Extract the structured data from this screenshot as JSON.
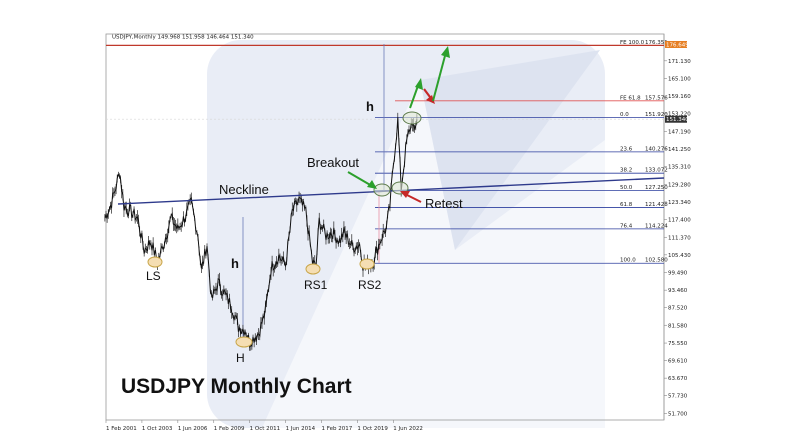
{
  "window": {
    "header_text": "USDJPY,Monthly  149.968 151.958 146.464 151.340"
  },
  "chart_data": {
    "type": "line",
    "title": "USDJPY Monthly Chart",
    "symbol": "USDJPY",
    "timeframe": "Monthly",
    "ohlc_header": {
      "open": 149.968,
      "high": 151.958,
      "low": 146.464,
      "close": 151.34
    },
    "last_price": 151.34,
    "target_price": 176.649,
    "x_tick_labels": [
      "1 Feb 2001",
      "1 Oct 2003",
      "1 Jun 2006",
      "1 Feb 2009",
      "1 Oct 2011",
      "1 Jun 2014",
      "1 Feb 2017",
      "1 Oct 2019",
      "1 Jun 2022"
    ],
    "y_tick_labels": [
      "171.130",
      "165.100",
      "159.160",
      "153.220",
      "147.190",
      "141.250",
      "135.310",
      "129.280",
      "123.340",
      "117.400",
      "111.370",
      "105.430",
      "99.490",
      "93.460",
      "87.520",
      "81.580",
      "75.550",
      "69.610",
      "63.670",
      "57.730",
      "51.700"
    ],
    "ylim": [
      49.5,
      180.2
    ],
    "grid": false,
    "series": [
      {
        "values": [
          [
            "2001-01",
            118
          ],
          [
            "2001-06",
            122
          ],
          [
            "2001-12",
            130
          ],
          [
            "2002-02",
            134
          ],
          [
            "2002-06",
            122
          ],
          [
            "2002-12",
            120
          ],
          [
            "2003-06",
            118
          ],
          [
            "2003-12",
            107
          ],
          [
            "2004-06",
            110
          ],
          [
            "2004-12",
            103
          ],
          [
            "2005-06",
            110
          ],
          [
            "2005-12",
            118
          ],
          [
            "2006-06",
            114
          ],
          [
            "2006-12",
            118
          ],
          [
            "2007-06",
            123
          ],
          [
            "2007-12",
            112
          ],
          [
            "2008-03",
            100
          ],
          [
            "2008-08",
            109
          ],
          [
            "2008-12",
            90
          ],
          [
            "2009-06",
            96
          ],
          [
            "2009-12",
            92
          ],
          [
            "2010-06",
            88
          ],
          [
            "2010-12",
            81
          ],
          [
            "2011-06",
            80
          ],
          [
            "2011-10",
            76
          ],
          [
            "2012-06",
            79
          ],
          [
            "2012-12",
            86
          ],
          [
            "2013-05",
            101
          ],
          [
            "2013-12",
            105
          ],
          [
            "2014-06",
            102
          ],
          [
            "2014-12",
            120
          ],
          [
            "2015-06",
            124
          ],
          [
            "2015-12",
            120
          ],
          [
            "2016-06",
            103
          ],
          [
            "2016-09",
            101
          ],
          [
            "2016-12",
            117
          ],
          [
            "2017-06",
            112
          ],
          [
            "2017-12",
            113
          ],
          [
            "2018-06",
            110
          ],
          [
            "2018-10",
            113
          ],
          [
            "2019-06",
            108
          ],
          [
            "2019-12",
            109
          ],
          [
            "2020-03",
            102
          ],
          [
            "2020-12",
            103
          ],
          [
            "2021-06",
            110
          ],
          [
            "2021-12",
            115
          ],
          [
            "2022-03",
            122
          ],
          [
            "2022-06",
            136
          ],
          [
            "2022-10",
            151
          ],
          [
            "2023-01",
            128
          ],
          [
            "2023-06",
            144
          ],
          [
            "2023-11",
            151
          ],
          [
            "2024-01",
            146
          ],
          [
            "2024-03",
            151.34
          ]
        ]
      }
    ],
    "fibonacci_levels": [
      {
        "label": "FE 100.0",
        "price": "176.351",
        "value": 176.35,
        "color": "#c0392b"
      },
      {
        "label": "FE 61.8",
        "price": "157.576",
        "value": 157.58,
        "color": "#e05555"
      },
      {
        "label": "0.0",
        "price": "151.920",
        "value": 151.92,
        "color": "#2c3e9e"
      },
      {
        "label": "23.6",
        "price": "140.276",
        "value": 140.28,
        "color": "#2c3e9e"
      },
      {
        "label": "38.2",
        "price": "133.072",
        "value": 133.07,
        "color": "#2c3e9e"
      },
      {
        "label": "50.0",
        "price": "127.250",
        "value": 127.25,
        "color": "#2c3e9e"
      },
      {
        "label": "61.8",
        "price": "121.428",
        "value": 121.43,
        "color": "#2c3e9e"
      },
      {
        "label": "76.4",
        "price": "114.224",
        "value": 114.22,
        "color": "#2c3e9e"
      },
      {
        "label": "100.0",
        "price": "102.580",
        "value": 102.58,
        "color": "#2c3e9e"
      }
    ],
    "annotations": {
      "neckline": "Neckline",
      "breakout": "Breakout",
      "retest": "Retest",
      "left_shoulder": "LS",
      "head": "H",
      "right_shoulder_1": "RS1",
      "right_shoulder_2": "RS2",
      "pattern_height_head": "h",
      "pattern_height_target": "h"
    },
    "colors": {
      "price_line": "#111111",
      "neckline": "#2e3a8c",
      "breakout_arrow": "#2ca02c",
      "retest_arrow": "#c62828",
      "projection_up": "#2ca02c",
      "projection_down": "#c62828",
      "marker_fill": "#f5deb3",
      "marker_stroke": "#c8a548",
      "last_price_badge": "#333333",
      "target_badge": "#e67e22",
      "watermark": "#e9edf6"
    }
  }
}
